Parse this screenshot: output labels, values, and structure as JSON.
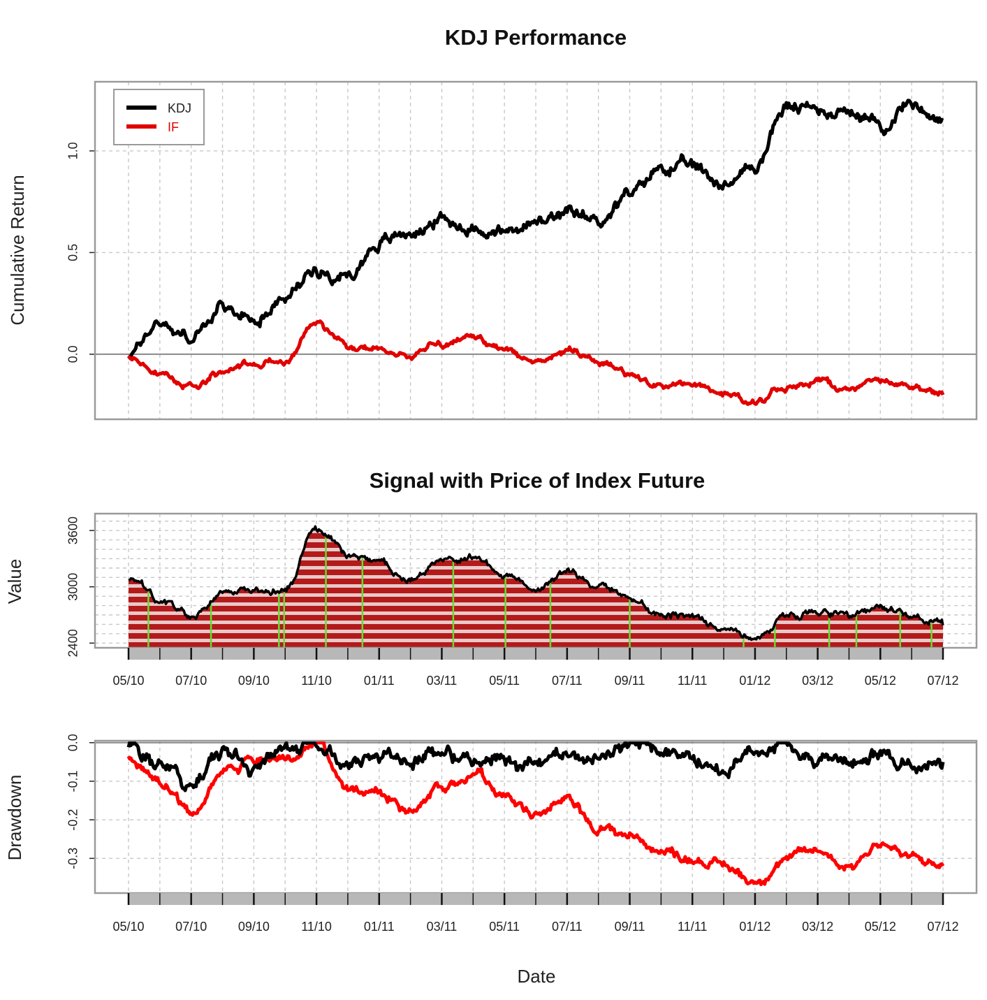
{
  "chart_data": [
    {
      "type": "line",
      "title": "KDJ Performance",
      "xlabel": "",
      "ylabel": "Cumulative Return",
      "x_range": [
        "2010-05",
        "2012-07"
      ],
      "ylim": [
        -0.32,
        1.34
      ],
      "y_ticks": [
        "0.0",
        "0.5",
        "1.0"
      ],
      "y_tick_values": [
        0.0,
        0.5,
        1.0
      ],
      "grid": true,
      "legend_position": "top-left",
      "series": [
        {
          "name": "KDJ",
          "color": "#000000",
          "x": [
            "2010-05",
            "2010-06",
            "2010-07",
            "2010-08",
            "2010-09",
            "2010-10",
            "2010-11",
            "2010-12",
            "2011-01",
            "2011-02",
            "2011-03",
            "2011-04",
            "2011-05",
            "2011-06",
            "2011-07",
            "2011-08",
            "2011-09",
            "2011-10",
            "2011-11",
            "2011-12",
            "2012-01",
            "2012-02",
            "2012-03",
            "2012-04",
            "2012-05",
            "2012-06",
            "2012-07"
          ],
          "values": [
            0.0,
            0.16,
            0.08,
            0.22,
            0.18,
            0.28,
            0.42,
            0.38,
            0.55,
            0.6,
            0.66,
            0.62,
            0.6,
            0.64,
            0.68,
            0.66,
            0.78,
            0.92,
            0.92,
            0.84,
            0.92,
            1.22,
            1.2,
            1.2,
            1.12,
            1.24,
            1.15
          ]
        },
        {
          "name": "IF",
          "color": "#e00000",
          "x": [
            "2010-05",
            "2010-06",
            "2010-07",
            "2010-08",
            "2010-09",
            "2010-10",
            "2010-11",
            "2010-12",
            "2011-01",
            "2011-02",
            "2011-03",
            "2011-04",
            "2011-05",
            "2011-06",
            "2011-07",
            "2011-08",
            "2011-09",
            "2011-10",
            "2011-11",
            "2011-12",
            "2012-01",
            "2012-02",
            "2012-03",
            "2012-04",
            "2012-05",
            "2012-06",
            "2012-07"
          ],
          "values": [
            -0.02,
            -0.1,
            -0.16,
            -0.08,
            -0.04,
            -0.04,
            0.16,
            0.04,
            0.02,
            -0.01,
            0.05,
            0.08,
            0.03,
            -0.04,
            0.02,
            -0.04,
            -0.1,
            -0.16,
            -0.14,
            -0.2,
            -0.24,
            -0.16,
            -0.13,
            -0.18,
            -0.12,
            -0.16,
            -0.2
          ]
        }
      ]
    },
    {
      "type": "area",
      "title": "Signal with Price of Index Future",
      "xlabel": "",
      "ylabel": "Value",
      "ylim": [
        2350,
        3780
      ],
      "y_ticks": [
        "2400",
        "3000",
        "3600"
      ],
      "y_tick_values": [
        2400,
        3000,
        3600
      ],
      "grid": true,
      "series": [
        {
          "name": "",
          "color": "#b30000",
          "x": [
            "2010-05",
            "2010-06",
            "2010-07",
            "2010-08",
            "2010-09",
            "2010-10",
            "2010-11",
            "2010-12",
            "2011-01",
            "2011-02",
            "2011-03",
            "2011-04",
            "2011-05",
            "2011-06",
            "2011-07",
            "2011-08",
            "2011-09",
            "2011-10",
            "2011-11",
            "2011-12",
            "2012-01",
            "2012-02",
            "2012-03",
            "2012-04",
            "2012-05",
            "2012-06",
            "2012-07"
          ],
          "values": [
            3070,
            2850,
            2700,
            2950,
            2970,
            2980,
            3620,
            3320,
            3270,
            3050,
            3260,
            3330,
            3150,
            2980,
            3170,
            3000,
            2900,
            2720,
            2700,
            2550,
            2460,
            2680,
            2750,
            2660,
            2770,
            2700,
            2590
          ]
        }
      ],
      "signal_line_color": "#66dd33",
      "signal_dates": [
        "2010-05-20",
        "2010-07-20",
        "2010-09-25",
        "2010-09-30",
        "2010-11-10",
        "2010-12-15",
        "2011-03-12",
        "2011-05-02",
        "2011-06-15",
        "2011-09-01",
        "2011-12-20",
        "2012-01-20",
        "2012-03-12",
        "2012-04-08",
        "2012-05-20",
        "2012-06-20"
      ]
    },
    {
      "type": "line",
      "title": "",
      "xlabel": "Date",
      "ylabel": "Drawdown",
      "ylim": [
        -0.39,
        0.005
      ],
      "y_ticks": [
        "0.0",
        "-0.1",
        "-0.2",
        "-0.3"
      ],
      "y_tick_values": [
        0.0,
        -0.1,
        -0.2,
        -0.3
      ],
      "grid": true,
      "series": [
        {
          "name": "KDJ",
          "color": "#000000",
          "x": [
            "2010-05",
            "2010-06",
            "2010-07",
            "2010-08",
            "2010-09",
            "2010-10",
            "2010-11",
            "2010-12",
            "2011-01",
            "2011-02",
            "2011-03",
            "2011-04",
            "2011-05",
            "2011-06",
            "2011-07",
            "2011-08",
            "2011-09",
            "2011-10",
            "2011-11",
            "2011-12",
            "2012-01",
            "2012-02",
            "2012-03",
            "2012-04",
            "2012-05",
            "2012-06",
            "2012-07"
          ],
          "values": [
            0.0,
            -0.06,
            -0.1,
            -0.02,
            -0.06,
            -0.02,
            0.0,
            -0.06,
            -0.02,
            -0.04,
            -0.02,
            -0.05,
            -0.04,
            -0.06,
            -0.03,
            -0.04,
            -0.01,
            -0.02,
            -0.04,
            -0.08,
            -0.02,
            -0.01,
            -0.04,
            -0.06,
            -0.02,
            -0.06,
            -0.05
          ]
        },
        {
          "name": "IF",
          "color": "#ff0000",
          "x": [
            "2010-05",
            "2010-06",
            "2010-07",
            "2010-08",
            "2010-09",
            "2010-10",
            "2010-11",
            "2010-12",
            "2011-01",
            "2011-02",
            "2011-03",
            "2011-04",
            "2011-05",
            "2011-06",
            "2011-07",
            "2011-08",
            "2011-09",
            "2011-10",
            "2011-11",
            "2011-12",
            "2012-01",
            "2012-02",
            "2012-03",
            "2012-04",
            "2012-05",
            "2012-06",
            "2012-07"
          ],
          "values": [
            -0.04,
            -0.1,
            -0.18,
            -0.08,
            -0.05,
            -0.04,
            0.0,
            -0.12,
            -0.13,
            -0.18,
            -0.11,
            -0.08,
            -0.14,
            -0.19,
            -0.15,
            -0.22,
            -0.24,
            -0.28,
            -0.3,
            -0.32,
            -0.36,
            -0.3,
            -0.28,
            -0.32,
            -0.26,
            -0.3,
            -0.32
          ]
        }
      ]
    }
  ],
  "x_tick_labels": [
    "05/10",
    "07/10",
    "09/10",
    "11/10",
    "01/11",
    "03/11",
    "05/11",
    "07/11",
    "09/11",
    "11/11",
    "01/12",
    "03/12",
    "05/12",
    "07/12"
  ],
  "x_tick_values": [
    "2010-05",
    "2010-07",
    "2010-09",
    "2010-11",
    "2011-01",
    "2011-03",
    "2011-05",
    "2011-07",
    "2011-09",
    "2011-11",
    "2012-01",
    "2012-03",
    "2012-05",
    "2012-07"
  ],
  "x_axis_start": "2010-05",
  "x_axis_end": "2012-07",
  "colors": {
    "frame": "#9a9a9a",
    "grid": "#c8c8c8",
    "zero_line": "#888888",
    "band_light": "#e8c8c8",
    "band_dark": "#b31a1a",
    "tick_strip": "#b8b8b8"
  }
}
